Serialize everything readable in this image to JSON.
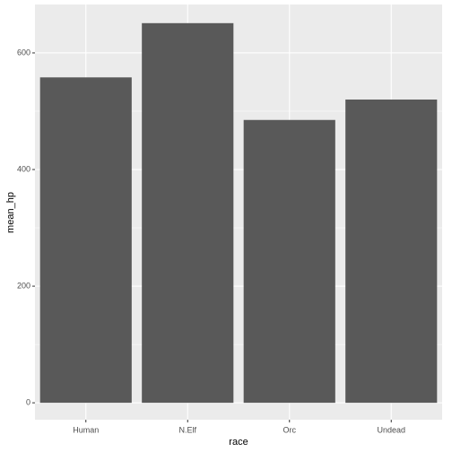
{
  "chart_data": {
    "type": "bar",
    "x_label": "race",
    "y_label": "mean_hp",
    "categories": [
      "Human",
      "N.Elf",
      "Orc",
      "Undead"
    ],
    "values": [
      558,
      651,
      485,
      520
    ],
    "color": "#595959",
    "ylim": [
      -29,
      683
    ],
    "yticks": [
      0,
      200,
      400,
      600
    ],
    "y_minor_ticks": [
      100,
      300,
      500
    ],
    "grid": true,
    "panel_color": "#ebebeb"
  }
}
